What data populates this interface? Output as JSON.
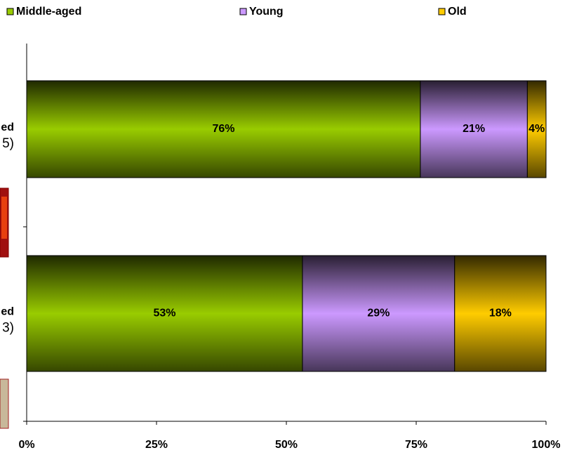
{
  "chart_data": {
    "type": "stacked_bar_horizontal",
    "categories": [
      [
        "ed",
        "5)"
      ],
      [
        "ed",
        "3)"
      ]
    ],
    "series": [
      {
        "name": "Middle-aged",
        "color": "#99cc00",
        "values": [
          75.8,
          53.1
        ],
        "value_labels": [
          "76%",
          "53%"
        ]
      },
      {
        "name": "Young",
        "color": "#cc99ff",
        "values": [
          20.6,
          29.3
        ],
        "value_labels": [
          "21%",
          "29%"
        ]
      },
      {
        "name": "Old",
        "color": "#ffcc00",
        "values": [
          3.6,
          17.6
        ],
        "value_labels": [
          "4%",
          "18%"
        ]
      }
    ],
    "xlim": [
      0,
      100
    ],
    "xticks": [
      {
        "value": 0,
        "label": "0%"
      },
      {
        "value": 25,
        "label": "25%"
      },
      {
        "value": 50,
        "label": "50%"
      },
      {
        "value": 75,
        "label": "75%"
      },
      {
        "value": 100,
        "label": "100%"
      }
    ],
    "legend": "top"
  }
}
